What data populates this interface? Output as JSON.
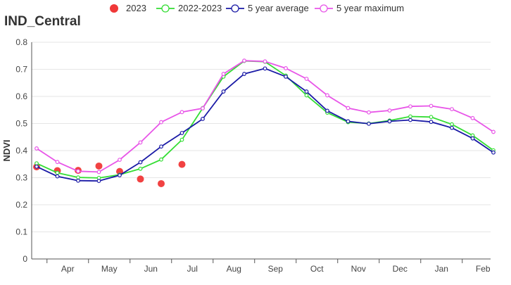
{
  "chart_data": {
    "type": "line",
    "title": "IND_Central",
    "xlabel": "",
    "ylabel": "NDVI",
    "ylim": [
      0,
      0.8
    ],
    "yticks": [
      "0",
      "0.1",
      "0.2",
      "0.3",
      "0.4",
      "0.5",
      "0.6",
      "0.7",
      "0.8"
    ],
    "month_labels": [
      "Apr",
      "May",
      "Jun",
      "Jul",
      "Aug",
      "Sep",
      "Oct",
      "Nov",
      "Dec",
      "Jan",
      "Feb"
    ],
    "x_periods": [
      "Mar-2",
      "Apr-1",
      "Apr-2",
      "May-1",
      "May-2",
      "Jun-1",
      "Jun-2",
      "Jul-1",
      "Jul-2",
      "Aug-1",
      "Aug-2",
      "Sep-1",
      "Sep-2",
      "Oct-1",
      "Oct-2",
      "Nov-1",
      "Nov-2",
      "Dec-1",
      "Dec-2",
      "Jan-1",
      "Jan-2",
      "Feb-1",
      "Feb-2"
    ],
    "grid": true,
    "legend_position": "top",
    "series": [
      {
        "name": "2023",
        "style": "dots",
        "color": "#f03838",
        "values": [
          0.34,
          0.326,
          0.327,
          0.343,
          0.323,
          0.295,
          0.278,
          0.349
        ]
      },
      {
        "name": "2022-2023",
        "style": "line",
        "color": "#33dd33",
        "values": [
          0.353,
          0.318,
          0.301,
          0.299,
          0.311,
          0.333,
          0.367,
          0.44,
          0.557,
          0.673,
          0.731,
          0.728,
          0.677,
          0.604,
          0.54,
          0.505,
          0.5,
          0.511,
          0.526,
          0.524,
          0.497,
          0.456,
          0.401
        ]
      },
      {
        "name": "5 year average",
        "style": "line",
        "color": "#1a1aa6",
        "values": [
          0.341,
          0.305,
          0.289,
          0.288,
          0.309,
          0.357,
          0.415,
          0.465,
          0.517,
          0.618,
          0.683,
          0.703,
          0.673,
          0.618,
          0.547,
          0.508,
          0.499,
          0.508,
          0.513,
          0.506,
          0.484,
          0.445,
          0.393
        ]
      },
      {
        "name": "5 year maximum",
        "style": "line",
        "color": "#e855e8",
        "values": [
          0.408,
          0.358,
          0.324,
          0.321,
          0.366,
          0.43,
          0.505,
          0.542,
          0.556,
          0.683,
          0.732,
          0.729,
          0.704,
          0.665,
          0.604,
          0.557,
          0.541,
          0.548,
          0.563,
          0.565,
          0.553,
          0.52,
          0.469
        ]
      }
    ]
  }
}
